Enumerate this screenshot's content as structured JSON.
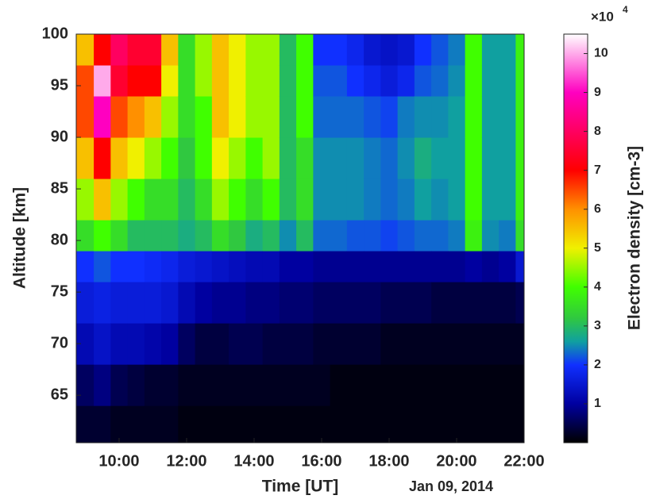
{
  "chart_data": {
    "type": "heatmap",
    "xlabel": "Time [UT]",
    "ylabel": "Altitude [km]",
    "date_label": "Jan 09, 2014",
    "colorbar_label": "Electron density [cm-3]",
    "colorbar_multiplier": "×10",
    "colorbar_exponent": "4",
    "xlim": [
      8.73,
      22
    ],
    "ylim": [
      60.4,
      100
    ],
    "clim": [
      0,
      10.5
    ],
    "xticks": [
      {
        "value": 10,
        "label": "10:00"
      },
      {
        "value": 12,
        "label": "12:00"
      },
      {
        "value": 14,
        "label": "14:00"
      },
      {
        "value": 16,
        "label": "16:00"
      },
      {
        "value": 18,
        "label": "18:00"
      },
      {
        "value": 20,
        "label": "20:00"
      },
      {
        "value": 22,
        "label": "22:00"
      }
    ],
    "yticks": [
      65,
      70,
      75,
      80,
      85,
      90,
      95,
      100
    ],
    "cticks": [
      1,
      2,
      3,
      4,
      5,
      6,
      7,
      8,
      9,
      10
    ],
    "colormap": [
      [
        0,
        "#000000"
      ],
      [
        1,
        "#0000a0"
      ],
      [
        2,
        "#1030ff"
      ],
      [
        2.6,
        "#10a0a0"
      ],
      [
        3.2,
        "#30c840"
      ],
      [
        4,
        "#40ff00"
      ],
      [
        5,
        "#f0f000"
      ],
      [
        6,
        "#ff9000"
      ],
      [
        7,
        "#ff0000"
      ],
      [
        8,
        "#ff0060"
      ],
      [
        9,
        "#ff00c0"
      ],
      [
        10.5,
        "#ffffff"
      ]
    ],
    "x_edges": [
      8.73,
      9.25,
      9.75,
      10.25,
      10.75,
      11.25,
      11.75,
      12.25,
      12.75,
      13.25,
      13.75,
      14.25,
      14.75,
      15.25,
      15.75,
      16.25,
      16.75,
      17.25,
      17.75,
      18.25,
      18.75,
      19.25,
      19.75,
      20.25,
      20.75,
      21.25,
      21.75,
      22
    ],
    "y_edges": [
      60.4,
      64,
      68,
      72,
      76,
      79,
      82,
      86,
      90,
      94,
      97,
      100
    ],
    "values": [
      [
        0.3,
        0.6,
        1.2,
        1.6,
        2.0,
        3.5,
        4.5,
        5.5,
        6.5,
        6.5,
        5.5
      ],
      [
        0.3,
        0.8,
        1.4,
        1.7,
        2.2,
        4,
        5.5,
        7,
        9,
        10,
        7
      ],
      [
        0.2,
        0.5,
        1.2,
        1.6,
        2.0,
        3.5,
        4.5,
        5.5,
        6.5,
        7.5,
        8
      ],
      [
        0.2,
        0.4,
        1.2,
        1.6,
        2.0,
        3,
        4,
        5,
        6,
        7,
        7.5
      ],
      [
        0.2,
        0.3,
        1.1,
        1.6,
        1.9,
        3,
        3.5,
        4.5,
        5.5,
        7,
        7.5
      ],
      [
        0.2,
        0.3,
        1.0,
        1.5,
        1.8,
        3,
        3.5,
        4,
        4.5,
        5,
        5.5
      ],
      [
        0.1,
        0.2,
        0.6,
        1.2,
        1.6,
        2.8,
        3,
        3.2,
        3.5,
        3.5,
        3.5
      ],
      [
        0.1,
        0.2,
        0.4,
        1.0,
        1.5,
        3,
        3.5,
        4,
        4,
        4.5,
        4.5
      ],
      [
        0.1,
        0.2,
        0.4,
        0.9,
        1.4,
        3.5,
        4.5,
        5,
        5.5,
        5.5,
        5.5
      ],
      [
        0.1,
        0.2,
        0.5,
        0.9,
        1.3,
        3.2,
        4,
        4.5,
        5,
        5,
        5
      ],
      [
        0.1,
        0.2,
        0.5,
        0.8,
        1.2,
        2.8,
        3.5,
        4,
        4.5,
        4.5,
        4.5
      ],
      [
        0.1,
        0.2,
        0.4,
        0.8,
        1.2,
        3,
        4,
        4.5,
        4.5,
        4.5,
        4.5
      ],
      [
        0.1,
        0.2,
        0.4,
        0.7,
        1.0,
        2.5,
        3,
        3,
        3,
        3,
        3
      ],
      [
        0.1,
        0.2,
        0.4,
        0.7,
        1.0,
        3,
        3.5,
        3.5,
        4,
        4,
        4
      ],
      [
        0.1,
        0.2,
        0.3,
        0.6,
        0.9,
        2.3,
        2.5,
        2.5,
        2.3,
        2.2,
        2.0
      ],
      [
        0.1,
        0.1,
        0.3,
        0.6,
        0.9,
        2.3,
        2.5,
        2.5,
        2.3,
        2.2,
        2.0
      ],
      [
        0.1,
        0.1,
        0.3,
        0.6,
        0.9,
        2.2,
        2.5,
        2.5,
        2.3,
        2.0,
        1.8
      ],
      [
        0.1,
        0.1,
        0.3,
        0.6,
        0.9,
        2.2,
        2.4,
        2.4,
        2.2,
        1.8,
        1.5
      ],
      [
        0.1,
        0.1,
        0.2,
        0.5,
        0.9,
        2.1,
        2.3,
        2.3,
        2.1,
        1.6,
        1.4
      ],
      [
        0.1,
        0.1,
        0.2,
        0.5,
        0.9,
        2.2,
        2.4,
        2.5,
        2.4,
        1.8,
        1.5
      ],
      [
        0.1,
        0.1,
        0.2,
        0.5,
        0.9,
        2.3,
        2.6,
        2.8,
        2.5,
        2.2,
        2.0
      ],
      [
        0.1,
        0.1,
        0.2,
        0.4,
        0.9,
        2.3,
        2.5,
        2.6,
        2.5,
        2.3,
        2.2
      ],
      [
        0.1,
        0.1,
        0.2,
        0.4,
        0.9,
        2.4,
        2.6,
        2.6,
        2.6,
        2.5,
        2.4
      ],
      [
        0.1,
        0.1,
        0.2,
        0.4,
        1.0,
        3.8,
        4,
        4,
        4,
        4,
        4
      ],
      [
        0.1,
        0.1,
        0.2,
        0.4,
        0.9,
        2.5,
        2.6,
        2.6,
        2.6,
        2.6,
        2.6
      ],
      [
        0.1,
        0.1,
        0.2,
        0.4,
        1.0,
        2.4,
        2.6,
        2.6,
        2.6,
        2.6,
        2.6
      ],
      [
        0.1,
        0.1,
        0.2,
        0.5,
        1.5,
        3.5,
        3.8,
        3.8,
        3.8,
        3.8,
        3.8
      ]
    ]
  }
}
